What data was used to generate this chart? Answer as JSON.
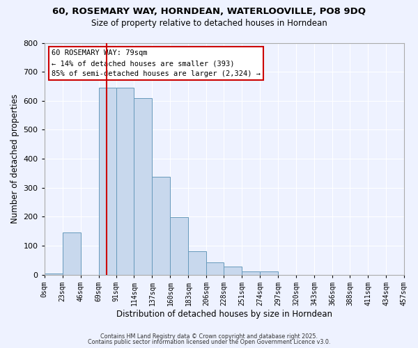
{
  "title_line1": "60, ROSEMARY WAY, HORNDEAN, WATERLOOVILLE, PO8 9DQ",
  "title_line2": "Size of property relative to detached houses in Horndean",
  "xlabel": "Distribution of detached houses by size in Horndean",
  "ylabel": "Number of detached properties",
  "bin_edges": [
    0,
    23,
    46,
    69,
    91,
    114,
    137,
    160,
    183,
    206,
    228,
    251,
    274,
    297,
    320,
    343,
    366,
    388,
    411,
    434,
    457
  ],
  "bin_labels": [
    "0sqm",
    "23sqm",
    "46sqm",
    "69sqm",
    "91sqm",
    "114sqm",
    "137sqm",
    "160sqm",
    "183sqm",
    "206sqm",
    "228sqm",
    "251sqm",
    "274sqm",
    "297sqm",
    "320sqm",
    "343sqm",
    "366sqm",
    "388sqm",
    "411sqm",
    "434sqm",
    "457sqm"
  ],
  "counts": [
    5,
    145,
    0,
    645,
    645,
    610,
    338,
    198,
    82,
    42,
    27,
    12,
    12,
    0,
    0,
    0,
    0,
    0,
    0,
    0
  ],
  "bar_color": "#c8d8ed",
  "bar_edge_color": "#6699bb",
  "vline_x": 79,
  "vline_color": "#cc0000",
  "ylim": [
    0,
    800
  ],
  "yticks": [
    0,
    100,
    200,
    300,
    400,
    500,
    600,
    700,
    800
  ],
  "annotation_title": "60 ROSEMARY WAY: 79sqm",
  "annotation_line1": "← 14% of detached houses are smaller (393)",
  "annotation_line2": "85% of semi-detached houses are larger (2,324) →",
  "annotation_box_color": "#ffffff",
  "annotation_box_edge": "#cc0000",
  "footer_line1": "Contains HM Land Registry data © Crown copyright and database right 2025.",
  "footer_line2": "Contains public sector information licensed under the Open Government Licence v3.0.",
  "background_color": "#eef2ff",
  "grid_color": "#ffffff"
}
